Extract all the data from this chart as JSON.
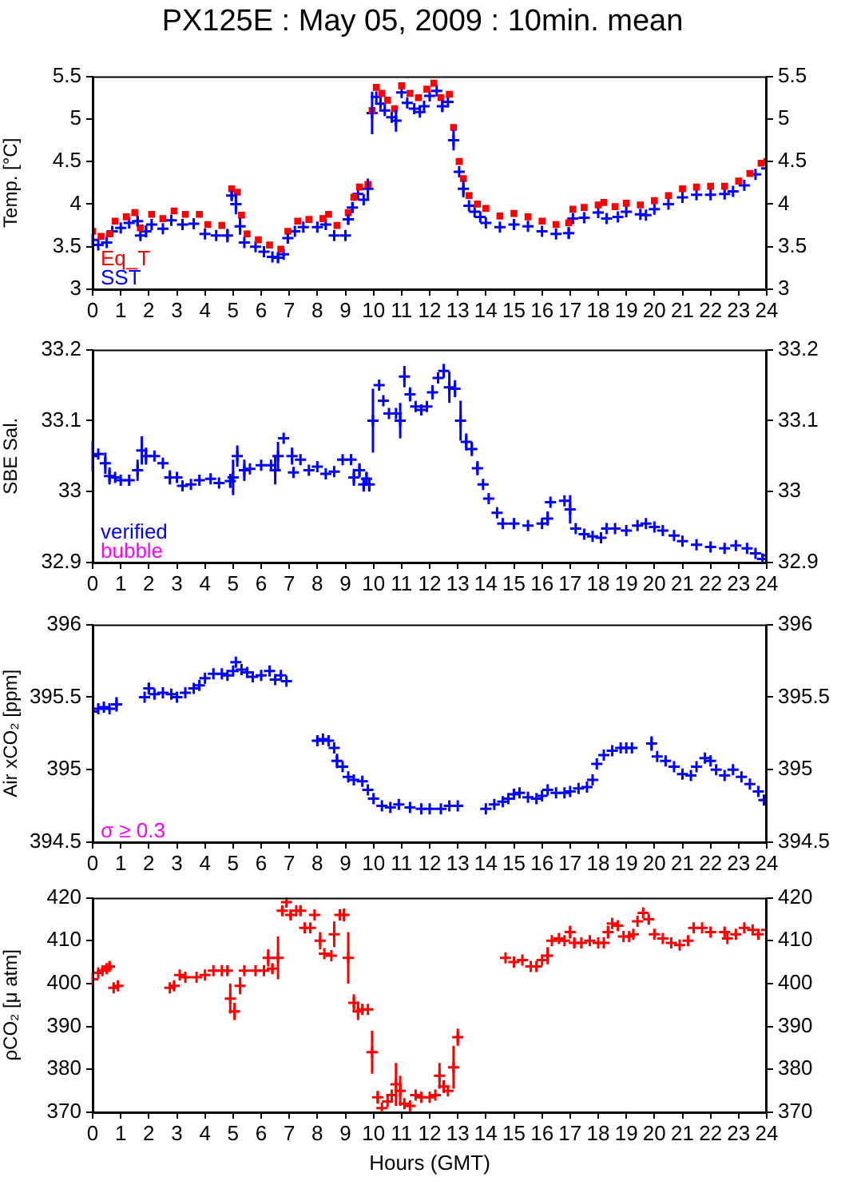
{
  "chart_data": [
    {
      "type": "scatter",
      "title": "PX125E : May 05, 2009 : 10min. mean",
      "ylabel": "Temp. [°C]",
      "legend": "bottom left",
      "marker": "cross",
      "grid": false,
      "xlim": [
        0,
        24
      ],
      "xticks": [
        0,
        1,
        2,
        3,
        4,
        5,
        6,
        7,
        8,
        9,
        10,
        11,
        12,
        13,
        14,
        15,
        16,
        17,
        18,
        19,
        20,
        21,
        22,
        23,
        24
      ],
      "ylim": [
        3,
        5.5
      ],
      "yticks": [
        3,
        3.5,
        4,
        4.5,
        5,
        5.5
      ],
      "y2lim": [
        3,
        5.5
      ],
      "y2ticks": [
        3,
        3.5,
        4,
        4.5,
        5,
        5.5
      ],
      "series": [
        {
          "name": "Eq_T",
          "color": "#ff0000",
          "marker": "square",
          "x": [
            0,
            0.3,
            0.6,
            0.8,
            1.2,
            1.5,
            1.7,
            2.1,
            2.5,
            2.9,
            3.3,
            3.8,
            4.1,
            4.6,
            4.95,
            5.15,
            5.3,
            5.5,
            5.9,
            6.3,
            6.7,
            6.95,
            7.3,
            7.7,
            8.2,
            8.4,
            8.7,
            9.1,
            9.3,
            9.5,
            9.8,
            9.95,
            10.1,
            10.3,
            10.5,
            10.75,
            11.0,
            11.3,
            11.6,
            11.9,
            12.15,
            12.4,
            12.7,
            12.85,
            13.05,
            13.2,
            13.4,
            13.7,
            14.0,
            14.5,
            15.0,
            15.5,
            16.0,
            16.5,
            16.95,
            17.1,
            17.5,
            18.0,
            18.2,
            18.6,
            19.0,
            19.5,
            20.0,
            20.5,
            21.0,
            21.5,
            22.0,
            22.5,
            23.0,
            23.4,
            23.8,
            24.0
          ],
          "values": [
            3.68,
            3.62,
            3.65,
            3.8,
            3.85,
            3.9,
            3.72,
            3.88,
            3.83,
            3.92,
            3.88,
            3.88,
            3.76,
            3.75,
            4.18,
            4.14,
            3.87,
            3.65,
            3.58,
            3.52,
            3.47,
            3.68,
            3.8,
            3.82,
            3.83,
            3.88,
            3.75,
            3.9,
            4.08,
            4.2,
            4.23,
            5.1,
            5.37,
            5.3,
            5.22,
            5.12,
            5.39,
            5.3,
            5.25,
            5.35,
            5.42,
            5.25,
            5.29,
            4.9,
            4.5,
            4.3,
            4.1,
            4.0,
            3.95,
            3.86,
            3.89,
            3.85,
            3.8,
            3.76,
            3.78,
            3.94,
            3.96,
            3.99,
            4.02,
            3.97,
            4.01,
            3.99,
            4.04,
            4.1,
            4.18,
            4.2,
            4.21,
            4.21,
            4.27,
            4.36,
            4.48,
            4.5
          ]
        },
        {
          "name": "SST",
          "color": "#0000ff",
          "x": [
            0,
            0.2,
            0.5,
            0.7,
            1.0,
            1.3,
            1.6,
            1.7,
            1.9,
            2.1,
            2.5,
            2.8,
            3.2,
            3.6,
            4.0,
            4.4,
            4.8,
            4.95,
            5.1,
            5.25,
            5.4,
            5.8,
            6.1,
            6.4,
            6.6,
            6.8,
            6.95,
            7.2,
            7.5,
            8.0,
            8.3,
            8.6,
            9.0,
            9.1,
            9.25,
            9.45,
            9.65,
            9.8,
            9.95,
            10.1,
            10.25,
            10.4,
            10.65,
            10.8,
            11.0,
            11.2,
            11.45,
            11.65,
            11.8,
            12.0,
            12.25,
            12.45,
            12.65,
            12.85,
            13.05,
            13.2,
            13.4,
            13.6,
            13.8,
            14.0,
            14.5,
            15.0,
            15.5,
            16.0,
            16.5,
            16.95,
            17.1,
            17.5,
            18.0,
            18.3,
            18.7,
            19.0,
            19.5,
            19.7,
            20.0,
            20.5,
            21.0,
            21.5,
            22.0,
            22.5,
            22.8,
            23.2,
            23.6,
            24.0
          ],
          "values": [
            3.58,
            3.52,
            3.55,
            3.68,
            3.72,
            3.78,
            3.8,
            3.63,
            3.68,
            3.76,
            3.71,
            3.81,
            3.76,
            3.77,
            3.65,
            3.63,
            3.63,
            4.1,
            4.0,
            3.74,
            3.55,
            3.5,
            3.44,
            3.38,
            3.37,
            3.41,
            3.6,
            3.68,
            3.73,
            3.73,
            3.76,
            3.63,
            3.63,
            3.82,
            3.96,
            4.12,
            4.05,
            4.18,
            5.07,
            5.26,
            5.18,
            5.1,
            5.02,
            4.98,
            5.31,
            5.19,
            5.12,
            5.08,
            5.15,
            5.27,
            5.33,
            5.15,
            5.2,
            4.75,
            4.38,
            4.18,
            3.98,
            3.91,
            3.85,
            3.78,
            3.73,
            3.76,
            3.74,
            3.68,
            3.65,
            3.66,
            3.83,
            3.84,
            3.9,
            3.83,
            3.85,
            3.91,
            3.88,
            3.87,
            3.94,
            4.0,
            4.08,
            4.11,
            4.11,
            4.12,
            4.15,
            4.22,
            4.35,
            4.42
          ],
          "errors": [
            0.07,
            null,
            null,
            null,
            null,
            null,
            0.06,
            null,
            0.07,
            null,
            null,
            null,
            null,
            null,
            null,
            null,
            0.08,
            0.06,
            0.12,
            0.1,
            null,
            null,
            null,
            null,
            0.06,
            null,
            0.06,
            null,
            null,
            null,
            null,
            null,
            null,
            0.06,
            0.06,
            null,
            null,
            0.12,
            0.25,
            null,
            null,
            null,
            null,
            0.13,
            null,
            null,
            null,
            null,
            null,
            null,
            null,
            0.07,
            null,
            0.12,
            null,
            0.1,
            null,
            null,
            null,
            null,
            null,
            null,
            null,
            null,
            null,
            0.07,
            null,
            null,
            null,
            null,
            null,
            null,
            null,
            null,
            null,
            null,
            null,
            null,
            null,
            null,
            null,
            null,
            null,
            null
          ]
        }
      ]
    },
    {
      "type": "scatter",
      "ylabel": "SBE Sal.",
      "legend": "bottom left",
      "marker": "cross",
      "grid": false,
      "annotations": [
        "bubble"
      ],
      "xlim": [
        0,
        24
      ],
      "xticks": [
        0,
        1,
        2,
        3,
        4,
        5,
        6,
        7,
        8,
        9,
        10,
        11,
        12,
        13,
        14,
        15,
        16,
        17,
        18,
        19,
        20,
        21,
        22,
        23,
        24
      ],
      "ylim": [
        32.9,
        33.2
      ],
      "yticks": [
        32.9,
        33,
        33.1,
        33.2
      ],
      "y2lim": [
        32.9,
        33.2
      ],
      "y2ticks": [
        32.9,
        33,
        33.1,
        33.2
      ],
      "series": [
        {
          "name": "verified",
          "color": "#0000ff",
          "x": [
            0,
            0.2,
            0.45,
            0.6,
            0.8,
            1.0,
            1.3,
            1.6,
            1.75,
            1.9,
            2.2,
            2.5,
            2.75,
            3.0,
            3.2,
            3.5,
            3.8,
            4.2,
            4.5,
            4.9,
            5.0,
            5.15,
            5.4,
            5.6,
            6.0,
            6.35,
            6.5,
            6.6,
            6.8,
            7.1,
            7.15,
            7.4,
            7.7,
            8.0,
            8.3,
            8.6,
            8.9,
            9.2,
            9.3,
            9.5,
            9.65,
            9.75,
            9.85,
            9.98,
            10.2,
            10.35,
            10.55,
            10.8,
            10.95,
            11.1,
            11.3,
            11.5,
            11.7,
            11.9,
            12.1,
            12.3,
            12.5,
            12.7,
            12.9,
            13.1,
            13.3,
            13.5,
            13.7,
            13.9,
            14.1,
            14.4,
            14.6,
            15.0,
            15.5,
            16.0,
            16.2,
            16.3,
            16.8,
            17.0,
            17.2,
            17.5,
            17.8,
            18.1,
            18.3,
            18.6,
            19.0,
            19.4,
            19.7,
            20.0,
            20.3,
            20.7,
            21.0,
            21.5,
            22.0,
            22.5,
            22.9,
            23.3,
            23.6,
            23.85,
            24.0
          ],
          "values": [
            33.05,
            33.053,
            33.04,
            33.022,
            33.02,
            33.016,
            33.016,
            33.03,
            33.058,
            33.05,
            33.05,
            33.04,
            33.02,
            33.02,
            33.008,
            33.01,
            33.016,
            33.018,
            33.012,
            33.015,
            33.02,
            33.05,
            33.03,
            33.032,
            33.037,
            33.037,
            33.03,
            33.05,
            33.075,
            33.05,
            33.027,
            33.045,
            33.03,
            33.035,
            33.025,
            33.028,
            33.045,
            33.045,
            33.02,
            33.03,
            33.01,
            33.018,
            33.01,
            33.1,
            33.15,
            33.128,
            33.11,
            33.11,
            33.1,
            33.162,
            33.137,
            33.12,
            33.115,
            33.12,
            33.14,
            33.16,
            33.17,
            33.147,
            33.145,
            33.1,
            33.07,
            33.06,
            33.033,
            33.01,
            32.99,
            32.97,
            32.955,
            32.955,
            32.952,
            32.955,
            32.962,
            32.985,
            32.987,
            32.975,
            32.948,
            32.94,
            32.937,
            32.935,
            32.948,
            32.948,
            32.945,
            32.952,
            32.955,
            32.95,
            32.945,
            32.938,
            32.93,
            32.925,
            32.922,
            32.92,
            32.924,
            32.92,
            32.913,
            32.905,
            32.91
          ],
          "errors": [
            0.022,
            null,
            0.015,
            0.012,
            null,
            null,
            null,
            0.015,
            0.02,
            0.012,
            null,
            null,
            0.01,
            null,
            null,
            null,
            null,
            null,
            null,
            0.01,
            0.025,
            0.015,
            0.015,
            null,
            null,
            null,
            0.02,
            0.02,
            null,
            0.012,
            null,
            null,
            null,
            null,
            null,
            null,
            null,
            null,
            0.012,
            0.01,
            0.01,
            0.01,
            0.01,
            0.045,
            null,
            null,
            null,
            null,
            0.025,
            0.015,
            0.01,
            null,
            null,
            null,
            0.01,
            null,
            0.01,
            0.022,
            0.012,
            0.028,
            0.012,
            0.01,
            0.01,
            null,
            null,
            null,
            null,
            null,
            null,
            null,
            0.01,
            null,
            null,
            0.02,
            null,
            null,
            null,
            null,
            null,
            null,
            null,
            null,
            null,
            null,
            null,
            null,
            null,
            null,
            null,
            null,
            null,
            null,
            null,
            null,
            null
          ]
        }
      ]
    },
    {
      "type": "scatter",
      "ylabel": "Air xCO₂ [ppm]",
      "marker": "cross",
      "grid": false,
      "annotations": [
        "σ ≥ 0.3"
      ],
      "xlim": [
        0,
        24
      ],
      "xticks": [
        0,
        1,
        2,
        3,
        4,
        5,
        6,
        7,
        8,
        9,
        10,
        11,
        12,
        13,
        14,
        15,
        16,
        17,
        18,
        19,
        20,
        21,
        22,
        23,
        24
      ],
      "ylim": [
        394.5,
        396
      ],
      "yticks": [
        394.5,
        395,
        395.5,
        396
      ],
      "y2lim": [
        394.5,
        396
      ],
      "y2ticks": [
        394.5,
        395,
        395.5,
        396
      ],
      "series": [
        {
          "color": "#0000ff",
          "x": [
            0,
            0.2,
            0.4,
            0.6,
            0.85,
            1.85,
            2.0,
            2.2,
            2.5,
            2.8,
            3.0,
            3.3,
            3.6,
            3.8,
            4.0,
            4.3,
            4.6,
            4.8,
            5.0,
            5.1,
            5.3,
            5.5,
            5.7,
            6.0,
            6.3,
            6.5,
            6.7,
            6.9,
            8.0,
            8.2,
            8.4,
            8.6,
            8.7,
            8.9,
            9.1,
            9.3,
            9.6,
            9.8,
            10.0,
            10.3,
            10.6,
            10.9,
            11.3,
            11.7,
            12.0,
            12.4,
            12.7,
            13.0,
            14.0,
            14.3,
            14.6,
            14.8,
            15.0,
            15.2,
            15.5,
            15.8,
            16.0,
            16.2,
            16.5,
            16.8,
            17.0,
            17.3,
            17.6,
            17.8,
            17.95,
            18.2,
            18.5,
            18.8,
            19.0,
            19.2,
            19.9,
            20.1,
            20.4,
            20.7,
            21.0,
            21.3,
            21.5,
            21.8,
            22.0,
            22.2,
            22.5,
            22.8,
            23.1,
            23.4,
            23.7,
            23.9,
            24.0
          ],
          "values": [
            395.4,
            395.42,
            395.43,
            395.42,
            395.45,
            395.5,
            395.56,
            395.52,
            395.53,
            395.52,
            395.5,
            395.53,
            395.56,
            395.58,
            395.63,
            395.66,
            395.66,
            395.65,
            395.68,
            395.74,
            395.69,
            395.67,
            395.64,
            395.65,
            395.68,
            395.62,
            395.65,
            395.61,
            395.2,
            395.21,
            395.2,
            395.15,
            395.06,
            395.02,
            394.95,
            394.93,
            394.92,
            394.86,
            394.8,
            394.75,
            394.74,
            394.76,
            394.74,
            394.73,
            394.73,
            394.73,
            394.75,
            394.75,
            394.73,
            394.76,
            394.78,
            394.8,
            394.83,
            394.84,
            394.81,
            394.8,
            394.82,
            394.86,
            394.84,
            394.84,
            394.85,
            394.87,
            394.88,
            394.93,
            395.04,
            395.1,
            395.13,
            395.15,
            395.15,
            395.15,
            395.18,
            395.09,
            395.06,
            395.02,
            394.97,
            394.96,
            395.02,
            395.08,
            395.06,
            395.0,
            394.96,
            395.0,
            394.95,
            394.9,
            394.85,
            394.79,
            394.79
          ],
          "errors": [
            null,
            null,
            null,
            null,
            0.05,
            null,
            0.04,
            null,
            null,
            null,
            null,
            null,
            null,
            null,
            null,
            null,
            null,
            null,
            null,
            null,
            null,
            null,
            null,
            null,
            null,
            null,
            null,
            null,
            null,
            null,
            null,
            null,
            0.05,
            null,
            null,
            null,
            null,
            null,
            null,
            null,
            null,
            null,
            null,
            null,
            null,
            null,
            null,
            null,
            null,
            null,
            null,
            null,
            null,
            null,
            null,
            null,
            null,
            null,
            null,
            null,
            null,
            null,
            null,
            null,
            null,
            null,
            null,
            null,
            null,
            null,
            0.05,
            null,
            null,
            null,
            null,
            null,
            null,
            null,
            null,
            null,
            null,
            null,
            null,
            null,
            null,
            null,
            null
          ]
        }
      ]
    },
    {
      "type": "scatter",
      "ylabel": "ρCO₂ [μ atm]",
      "xlabel": "Hours (GMT)",
      "marker": "cross",
      "grid": false,
      "xlim": [
        0,
        24
      ],
      "xticks": [
        0,
        1,
        2,
        3,
        4,
        5,
        6,
        7,
        8,
        9,
        10,
        11,
        12,
        13,
        14,
        15,
        16,
        17,
        18,
        19,
        20,
        21,
        22,
        23,
        24
      ],
      "ylim": [
        370,
        420
      ],
      "yticks": [
        370,
        380,
        390,
        400,
        410,
        420
      ],
      "y2lim": [
        370,
        420
      ],
      "y2ticks": [
        370,
        380,
        390,
        400,
        410,
        420
      ],
      "series": [
        {
          "color": "#ff0000",
          "x": [
            0,
            0.2,
            0.35,
            0.5,
            0.6,
            0.75,
            0.9,
            2.75,
            2.9,
            3.1,
            3.3,
            3.7,
            4.0,
            4.3,
            4.6,
            4.8,
            4.9,
            5.05,
            5.25,
            5.4,
            5.8,
            6.1,
            6.25,
            6.4,
            6.6,
            6.75,
            6.9,
            7.05,
            7.25,
            7.4,
            7.55,
            7.75,
            7.9,
            8.1,
            8.25,
            8.5,
            8.6,
            8.8,
            8.95,
            9.1,
            9.3,
            9.45,
            9.6,
            9.8,
            9.95,
            10.15,
            10.3,
            10.5,
            10.65,
            10.8,
            10.95,
            11.1,
            11.3,
            11.5,
            11.7,
            12.0,
            12.2,
            12.35,
            12.5,
            12.65,
            12.85,
            13.0,
            14.7,
            15.0,
            15.3,
            15.6,
            15.8,
            16.0,
            16.2,
            16.35,
            16.6,
            16.8,
            17.0,
            17.15,
            17.4,
            17.7,
            18.0,
            18.2,
            18.35,
            18.5,
            18.7,
            18.9,
            19.1,
            19.25,
            19.4,
            19.6,
            19.8,
            20.0,
            20.3,
            20.6,
            20.9,
            21.2,
            21.4,
            21.7,
            22.0,
            22.5,
            22.6,
            22.9,
            23.2,
            23.5,
            23.7,
            24.0
          ],
          "values": [
            401,
            402.5,
            403,
            403.5,
            404,
            399,
            399.5,
            399,
            399.5,
            402,
            401.5,
            401.5,
            402,
            403,
            403,
            403,
            396.5,
            393.5,
            399.5,
            403,
            403,
            403,
            406,
            403.5,
            406,
            417,
            419,
            416,
            417,
            417,
            413,
            413,
            416,
            410,
            407,
            406.5,
            411.5,
            416,
            416,
            406,
            395.5,
            393.5,
            394,
            394,
            384,
            373.5,
            371,
            372.5,
            374,
            376.5,
            375,
            372,
            371.5,
            374,
            373.5,
            373.5,
            374,
            378.5,
            376,
            375,
            380.5,
            387.5,
            406,
            405,
            405.5,
            404,
            404,
            405.5,
            406.5,
            410,
            410.5,
            410,
            412,
            409.5,
            409.5,
            410,
            409.5,
            409.5,
            412,
            414,
            413.5,
            411,
            411,
            411.5,
            414.5,
            416.5,
            415,
            411.5,
            410.5,
            409.5,
            409,
            410,
            413,
            413,
            412,
            412,
            410.5,
            411.5,
            413,
            412.5,
            411.5,
            412.5
          ],
          "errors": [
            1.5,
            null,
            null,
            null,
            1,
            null,
            1,
            null,
            1,
            null,
            null,
            null,
            null,
            null,
            null,
            1,
            3.5,
            2,
            2,
            null,
            null,
            null,
            2,
            1,
            5,
            1,
            1,
            1,
            null,
            1,
            null,
            1,
            null,
            2,
            null,
            null,
            3,
            null,
            1.5,
            6,
            2,
            2,
            null,
            null,
            5,
            1.5,
            null,
            null,
            null,
            5,
            3.5,
            null,
            null,
            null,
            null,
            null,
            null,
            3,
            1.5,
            null,
            5,
            2,
            null,
            null,
            null,
            null,
            null,
            null,
            2,
            null,
            null,
            null,
            1.5,
            1,
            null,
            null,
            null,
            null,
            1.5,
            null,
            null,
            null,
            null,
            null,
            null,
            null,
            1,
            null,
            null,
            null,
            null,
            null,
            1,
            null,
            null,
            1,
            null,
            null,
            null,
            null,
            null,
            null
          ]
        }
      ]
    }
  ]
}
